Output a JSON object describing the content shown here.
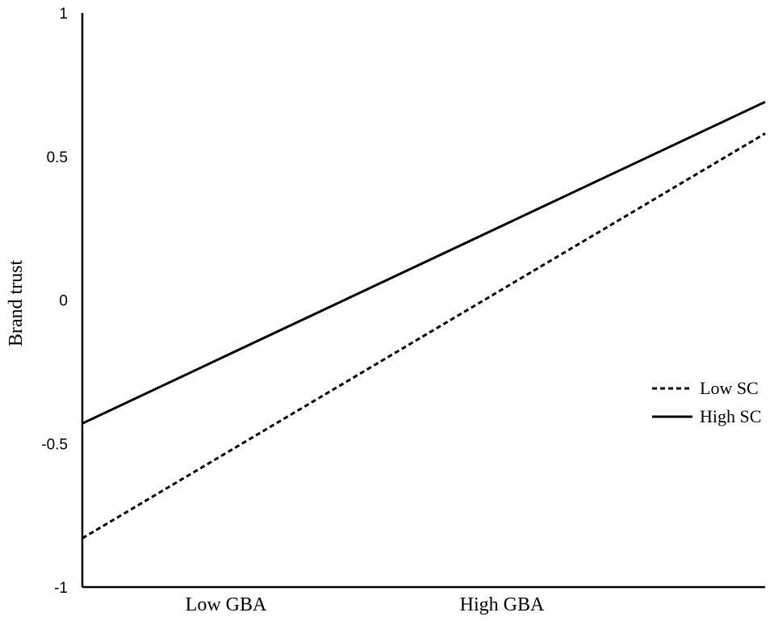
{
  "chart_data": {
    "type": "line",
    "title": "",
    "xlabel": "",
    "ylabel": "Brand trust",
    "categories": [
      "Low GBA",
      "High GBA"
    ],
    "x_range": [
      0,
      1
    ],
    "ylim": [
      -1,
      1
    ],
    "yticks": [
      "1",
      "0.5",
      "0",
      "-0.5",
      "-1"
    ],
    "ytick_values": [
      1,
      0.5,
      0,
      -0.5,
      -1
    ],
    "grid": false,
    "legend_position": "right",
    "series": [
      {
        "name": "Low SC",
        "style": "dashed",
        "color": "#000000",
        "x": [
          0,
          1
        ],
        "y": [
          -0.83,
          0.58
        ]
      },
      {
        "name": "High SC",
        "style": "solid",
        "color": "#000000",
        "x": [
          0,
          1
        ],
        "y": [
          -0.43,
          0.69
        ]
      }
    ]
  }
}
